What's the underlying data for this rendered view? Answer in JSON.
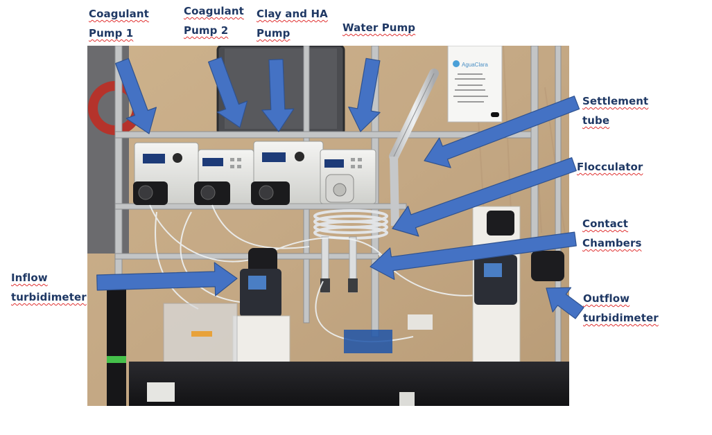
{
  "labels": {
    "coag1": "Coagulant\nPump 1",
    "coag2": "Coagulant\nPump 2",
    "clay": "Clay and HA\nPump",
    "water": "Water Pump",
    "settle": "Settlement\ntube",
    "floc": "Flocculator",
    "contact": "Contact\nChambers",
    "inflow": "Inflow\nturbidimeter",
    "outflow": "Outflow\nturbidimeter"
  },
  "sign": {
    "brand": "AguaClara"
  },
  "colors": {
    "arrow": "#4472c4",
    "label_text": "#1f3864",
    "spellcheck": "#e03030"
  }
}
